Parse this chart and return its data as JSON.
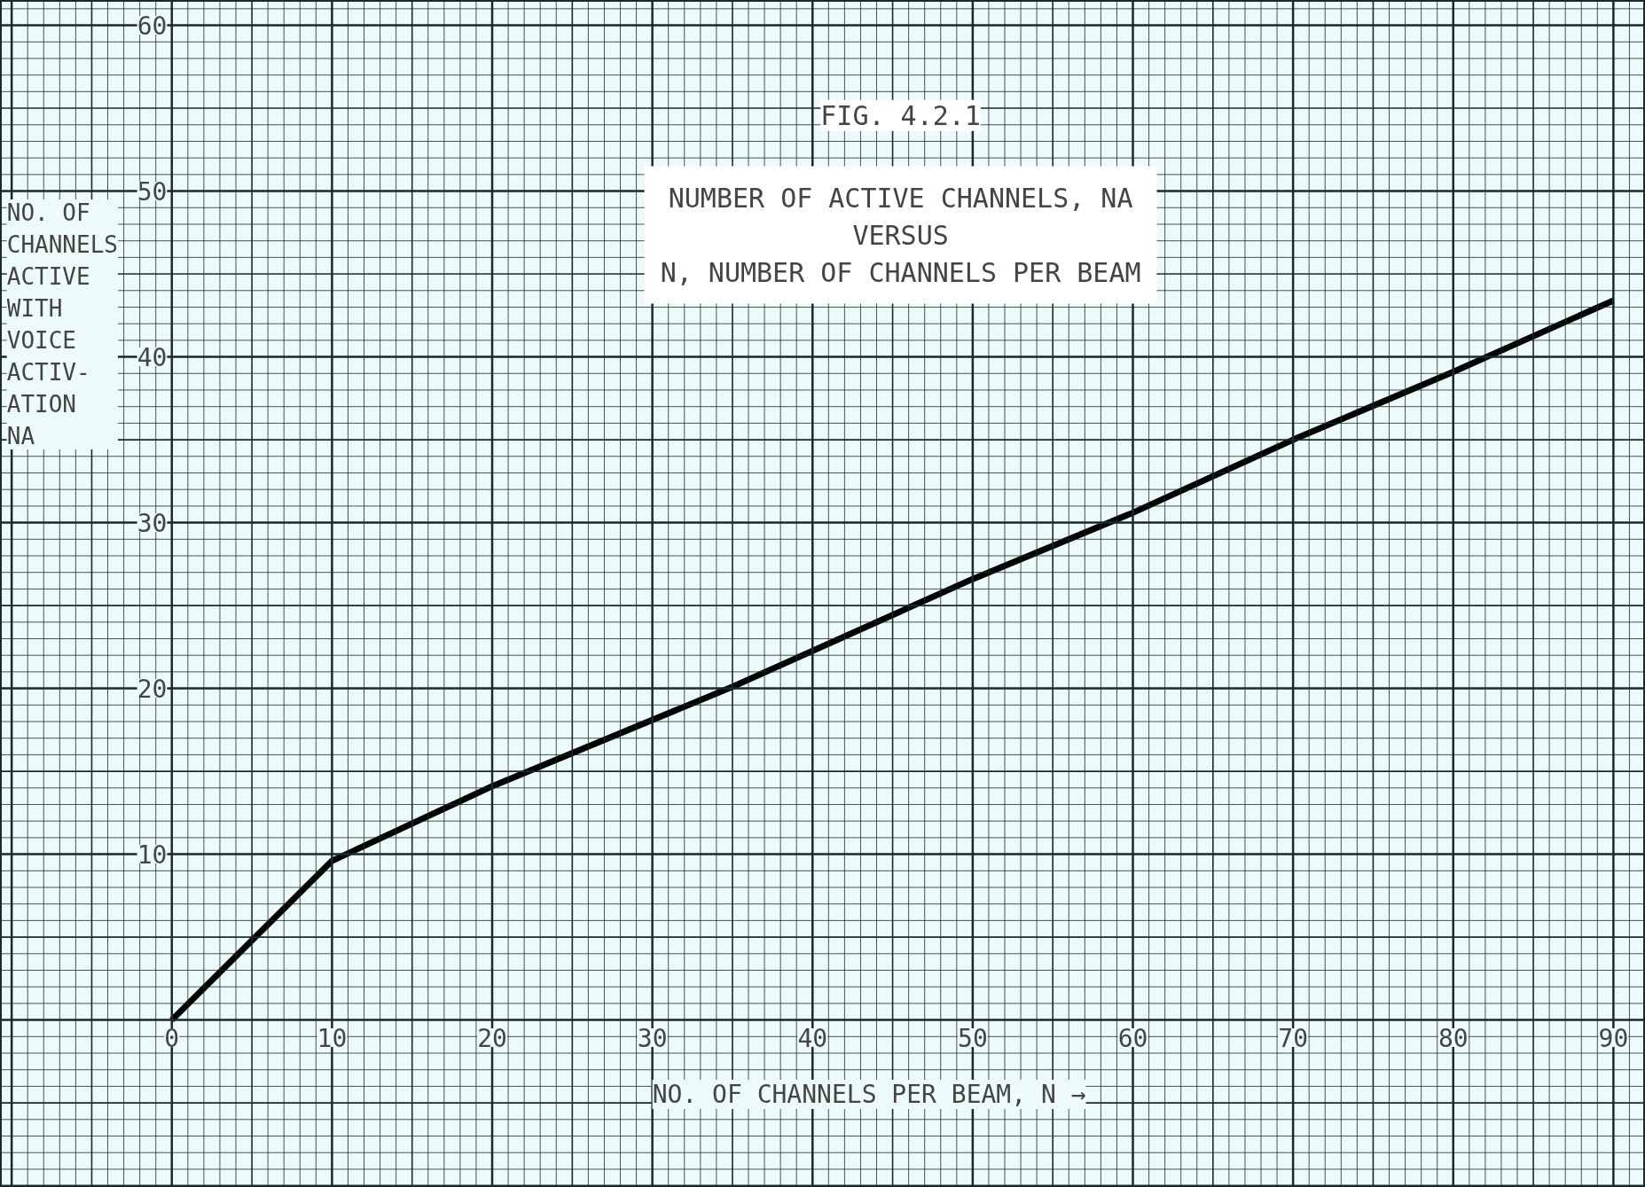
{
  "chart_data": {
    "type": "line",
    "title": "FIG. 4.2.1",
    "subtitle": "NUMBER OF ACTIVE CHANNELS, NA\nVERSUS\nN, NUMBER OF CHANNELS PER BEAM",
    "xlabel": "NO. OF CHANNELS PER BEAM, N →",
    "ylabel": "NO. OF\nCHANNELS\nACTIVE\nWITH\nVOICE\nACTIV-\nATION\nNA",
    "x": [
      0,
      10,
      20,
      35,
      50,
      60,
      70,
      80,
      90
    ],
    "series": [
      {
        "color": "#000000",
        "values": [
          0,
          9.6,
          14.1,
          20.1,
          26.6,
          30.6,
          35,
          39.1,
          43.4
        ]
      }
    ],
    "xlim": [
      -10.7,
      92
    ],
    "ylim": [
      -10.1,
      61.5
    ],
    "xticks": [
      0,
      10,
      20,
      30,
      40,
      50,
      60,
      70,
      80,
      90
    ],
    "yticks": [
      10,
      20,
      30,
      40,
      50,
      60
    ],
    "grid": true,
    "marker": "none",
    "line_style": "solid"
  }
}
